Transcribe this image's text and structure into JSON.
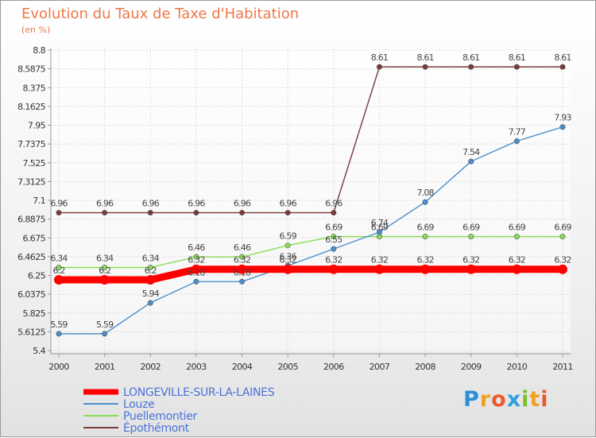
{
  "chart": {
    "title": "Evolution du Taux de Taxe d'Habitation",
    "unit": "(en %)"
  },
  "brand": {
    "letters": [
      "P",
      "r",
      "o",
      "x",
      "i",
      "t",
      "i"
    ],
    "letter_colors": [
      "#2a8fd6",
      "#f0a020",
      "#ea5a2a",
      "#30a0e0",
      "#78c030",
      "#f0a020",
      "#ea5a2a"
    ]
  },
  "chart_data": {
    "type": "line",
    "title": "Evolution du Taux de Taxe d'Habitation",
    "ylabel": "(en %)",
    "xlabel": "",
    "x": [
      "2000",
      "2001",
      "2002",
      "2003",
      "2004",
      "2005",
      "2006",
      "2007",
      "2008",
      "2009",
      "2010",
      "2011"
    ],
    "ylim": [
      5.4,
      8.8
    ],
    "yticks": [
      "5.4",
      "5.6125",
      "5.825",
      "6.0375",
      "6.25",
      "6.4625",
      "6.675",
      "6.8875",
      "7.1",
      "7.3125",
      "7.525",
      "7.7375",
      "7.95",
      "8.1625",
      "8.375",
      "8.5875",
      "8.8"
    ],
    "grid": true,
    "legend_position": "bottom-left",
    "series": [
      {
        "name": "LONGEVILLE-SUR-LA-LAINES",
        "color": "#ff0000",
        "values": [
          6.2,
          6.2,
          6.2,
          6.32,
          6.32,
          6.32,
          6.32,
          6.32,
          6.32,
          6.32,
          6.32,
          6.32
        ],
        "labels": [
          "6.2",
          "6.2",
          "6.2",
          "6.32",
          "6.32",
          "6.32",
          "6.32",
          "6.32",
          "6.32",
          "6.32",
          "6.32",
          "6.32"
        ]
      },
      {
        "name": "Louze",
        "color": "#4a8fcc",
        "values": [
          5.59,
          5.59,
          5.94,
          6.18,
          6.18,
          6.36,
          6.55,
          6.74,
          7.08,
          7.54,
          7.77,
          7.93
        ],
        "labels": [
          "5.59",
          "5.59",
          "5.94",
          "6.18",
          "6.18",
          "6.36",
          "6.55",
          "6.74",
          "7.08",
          "7.54",
          "7.77",
          "7.93"
        ]
      },
      {
        "name": "Puellemontier",
        "color": "#88dd55",
        "values": [
          6.34,
          6.34,
          6.34,
          6.46,
          6.46,
          6.59,
          6.69,
          6.69,
          6.69,
          6.69,
          6.69,
          6.69
        ],
        "labels": [
          "6.34",
          "6.34",
          "6.34",
          "6.46",
          "6.46",
          "6.59",
          "6.69",
          "6.69",
          "6.69",
          "6.69",
          "6.69",
          "6.69"
        ]
      },
      {
        "name": "Épothémont",
        "color": "#7a3a3a",
        "values": [
          6.96,
          6.96,
          6.96,
          6.96,
          6.96,
          6.96,
          6.96,
          8.61,
          8.61,
          8.61,
          8.61,
          8.61
        ],
        "labels": [
          "6.96",
          "6.96",
          "6.96",
          "6.96",
          "6.96",
          "6.96",
          "6.96",
          "8.61",
          "8.61",
          "8.61",
          "8.61",
          "8.61"
        ]
      }
    ]
  }
}
